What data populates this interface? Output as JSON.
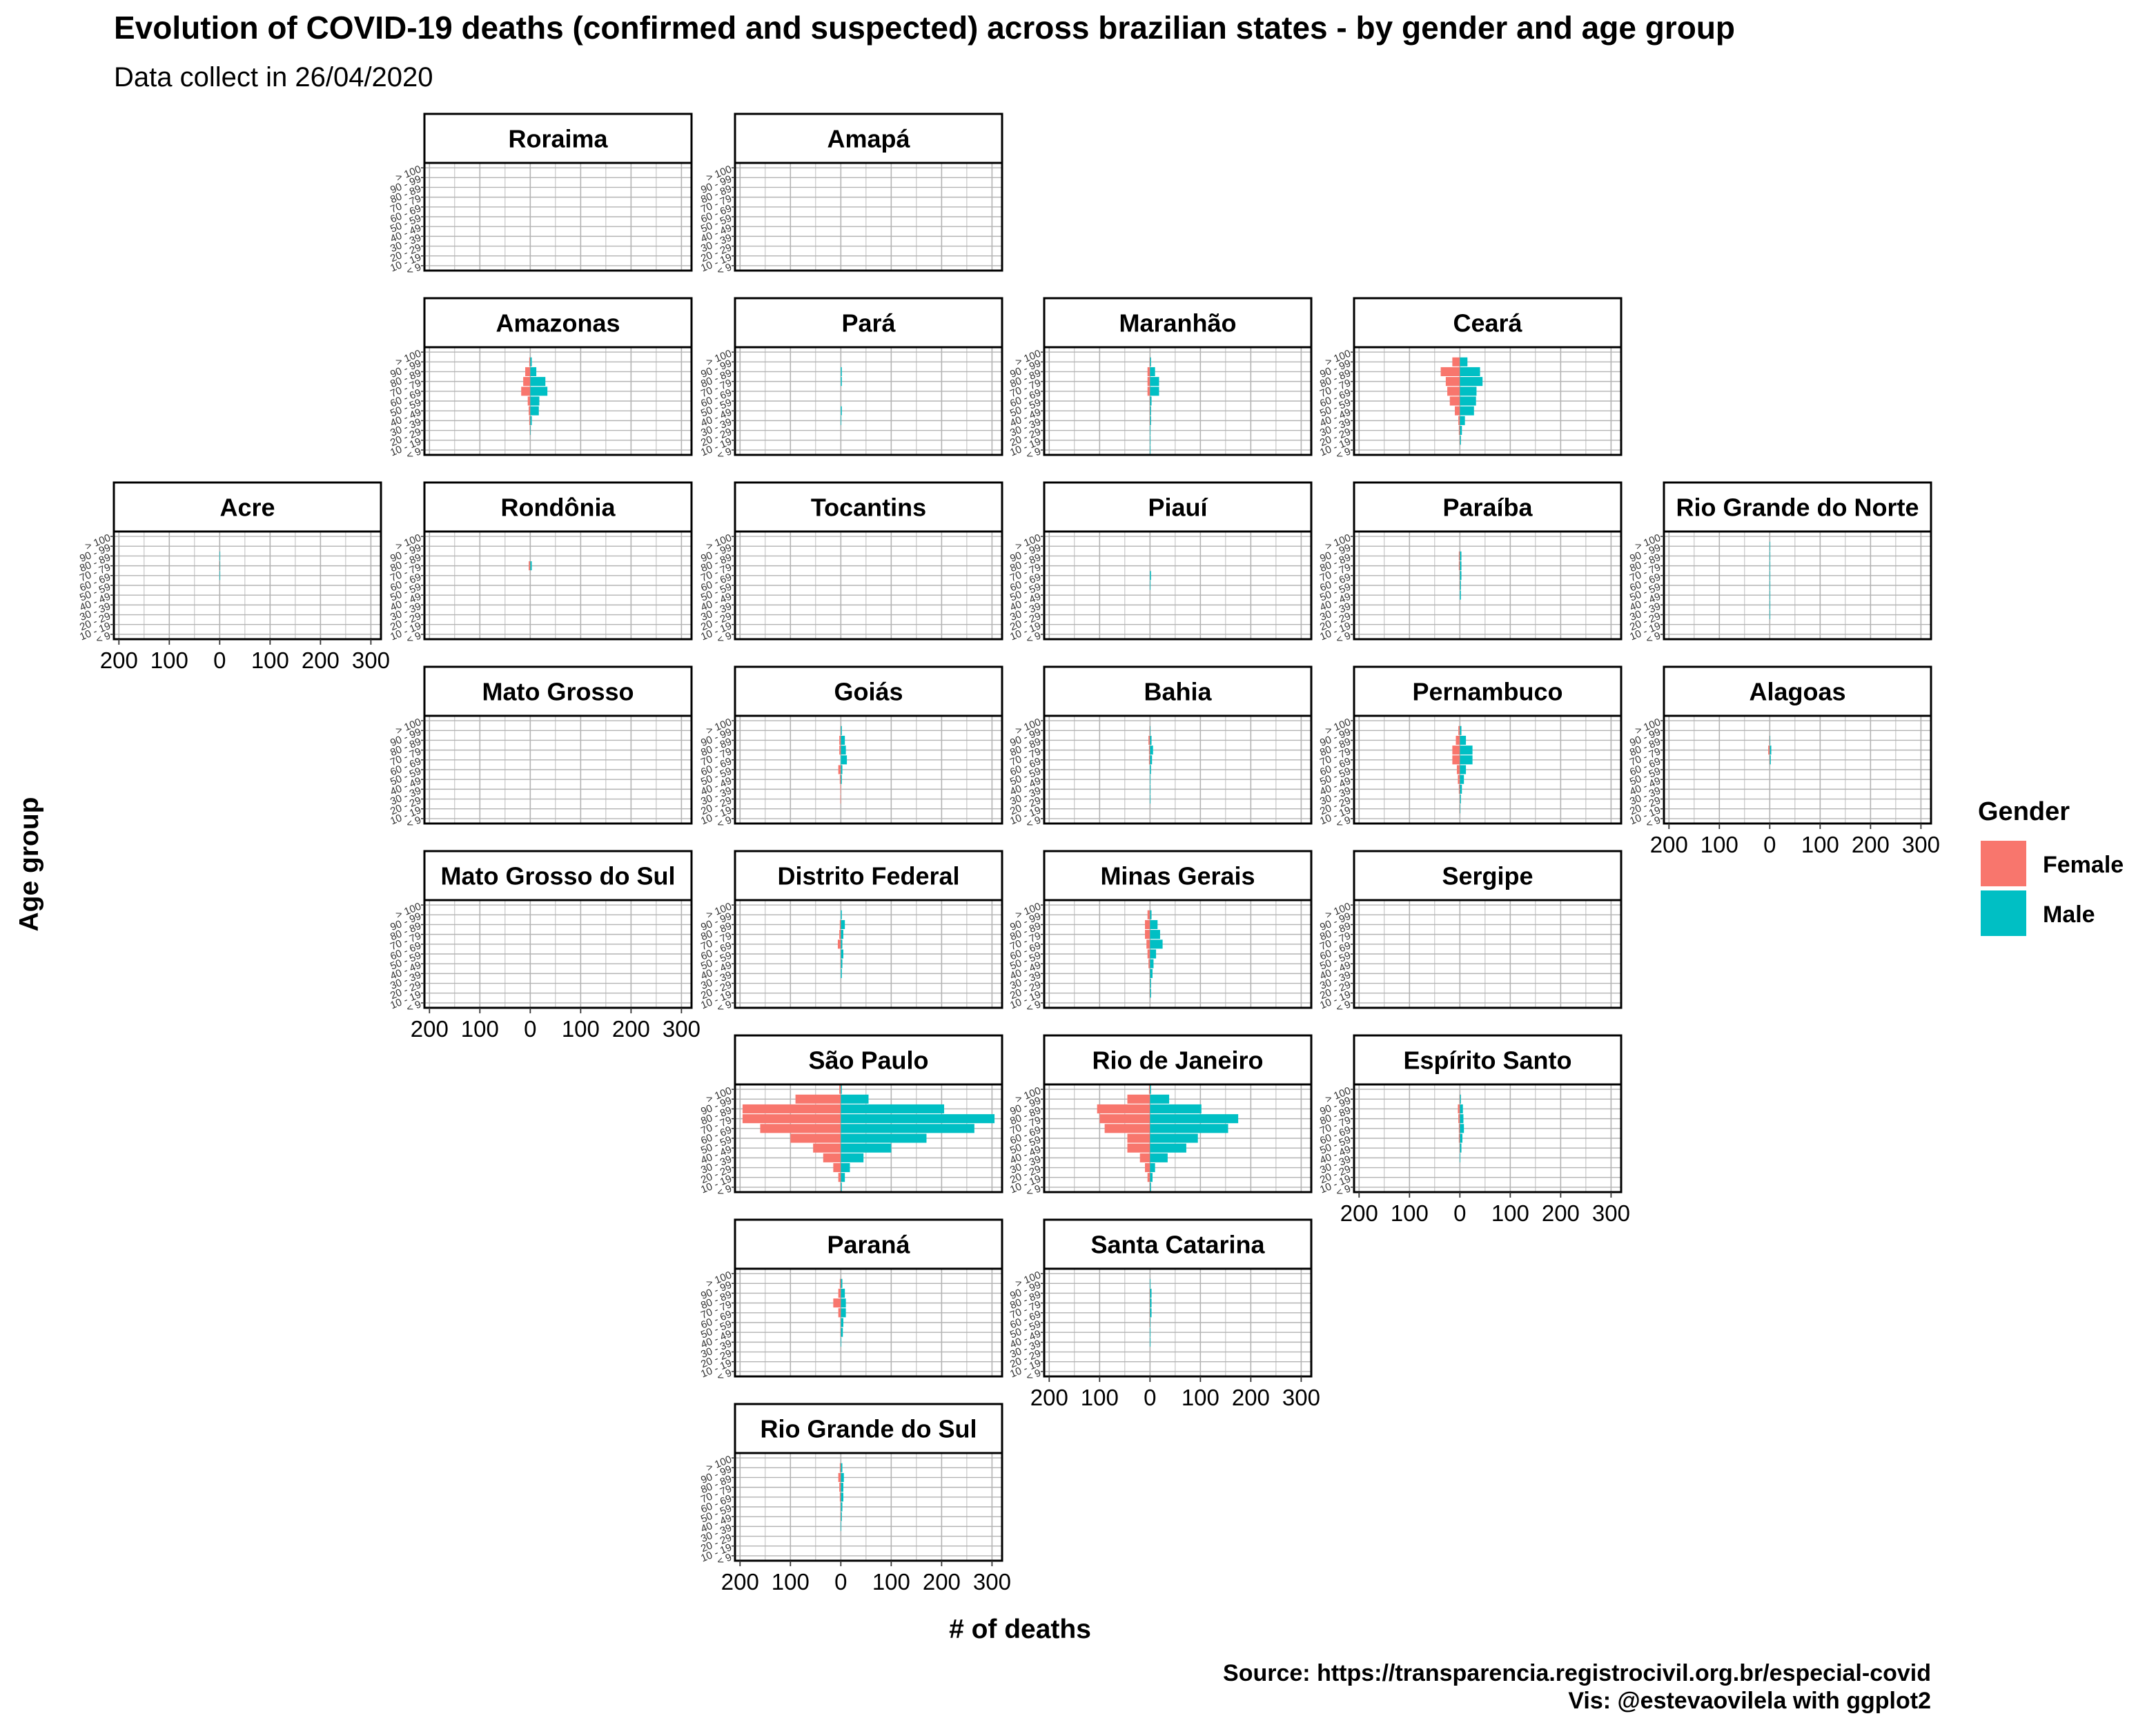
{
  "title": "Evolution of COVID-19 deaths (confirmed and suspected) across brazilian states - by gender and age group",
  "subtitle": "Data collect in 26/04/2020",
  "caption_lines": [
    "Source: https://transparencia.registrocivil.org.br/especial-covid",
    "Vis: @estevaovilela with ggplot2"
  ],
  "colors": {
    "female": "#F8766D",
    "male": "#00BFC4",
    "grid": "#b3b3b3",
    "strip_bg": "#ffffff",
    "border": "#000000"
  },
  "chart_data": {
    "type": "bar",
    "orientation": "horizontal-population-pyramid",
    "xlabel": "# of deaths",
    "ylabel": "Age group",
    "xlim": [
      -210,
      320
    ],
    "x_ticks": [
      -200,
      -100,
      0,
      100,
      200,
      300
    ],
    "x_tick_labels": [
      "200",
      "100",
      "0",
      "100",
      "200",
      "300"
    ],
    "age_groups": [
      "< 9",
      "10 - 19",
      "20 - 29",
      "30 - 39",
      "40 - 49",
      "50 - 59",
      "60 - 69",
      "70 - 79",
      "80 - 89",
      "90 - 99",
      "> 100"
    ],
    "legend": {
      "title": "Gender",
      "entries": [
        "Female",
        "Male"
      ],
      "position": "right"
    },
    "grid": true,
    "series_order": [
      "Female",
      "Male"
    ],
    "facets": [
      {
        "state": "Roraima",
        "row": 0,
        "col": 1,
        "female": [
          0,
          0,
          0,
          0,
          0,
          0,
          0,
          0,
          0,
          0,
          0
        ],
        "male": [
          0,
          0,
          0,
          0,
          0,
          0,
          0,
          0,
          0,
          0,
          0
        ]
      },
      {
        "state": "Amapá",
        "row": 0,
        "col": 2,
        "female": [
          0,
          0,
          0,
          0,
          0,
          0,
          0,
          0,
          0,
          0,
          0
        ],
        "male": [
          0,
          0,
          0,
          0,
          0,
          0,
          0,
          0,
          0,
          0,
          0
        ]
      },
      {
        "state": "Amazonas",
        "row": 1,
        "col": 1,
        "female": [
          0,
          0,
          1,
          2,
          3,
          5,
          18,
          14,
          10,
          2,
          0
        ],
        "male": [
          0,
          0,
          1,
          3,
          17,
          18,
          34,
          30,
          12,
          3,
          0
        ]
      },
      {
        "state": "Pará",
        "row": 1,
        "col": 2,
        "female": [
          0,
          0,
          0,
          0,
          0,
          0,
          0,
          0,
          0,
          0,
          0
        ],
        "male": [
          0,
          0,
          0,
          1,
          2,
          0,
          0,
          2,
          2,
          0,
          0
        ]
      },
      {
        "state": "Maranhão",
        "row": 1,
        "col": 3,
        "female": [
          0,
          0,
          0,
          1,
          1,
          1,
          5,
          5,
          5,
          1,
          0
        ],
        "male": [
          1,
          1,
          1,
          2,
          2,
          3,
          18,
          18,
          10,
          2,
          0
        ]
      },
      {
        "state": "Ceará",
        "row": 1,
        "col": 4,
        "female": [
          0,
          1,
          2,
          3,
          10,
          20,
          25,
          28,
          38,
          15,
          0
        ],
        "male": [
          0,
          2,
          4,
          10,
          28,
          32,
          33,
          45,
          40,
          15,
          0
        ]
      },
      {
        "state": "Acre",
        "row": 2,
        "col": 0,
        "female": [
          0,
          0,
          0,
          0,
          0,
          0,
          0,
          1,
          0,
          0,
          0
        ],
        "male": [
          0,
          0,
          0,
          0,
          0,
          0,
          1,
          1,
          1,
          0,
          0
        ]
      },
      {
        "state": "Rondônia",
        "row": 2,
        "col": 1,
        "female": [
          0,
          0,
          0,
          0,
          0,
          0,
          0,
          3,
          0,
          0,
          0
        ],
        "male": [
          0,
          0,
          0,
          0,
          0,
          0,
          0,
          3,
          0,
          0,
          0
        ]
      },
      {
        "state": "Tocantins",
        "row": 2,
        "col": 2,
        "female": [
          0,
          0,
          0,
          0,
          0,
          0,
          0,
          0,
          0,
          0,
          0
        ],
        "male": [
          0,
          0,
          0,
          0,
          0,
          0,
          0,
          0,
          0,
          0,
          0
        ]
      },
      {
        "state": "Piauí",
        "row": 2,
        "col": 3,
        "female": [
          0,
          0,
          0,
          0,
          0,
          0,
          0,
          0,
          0,
          0,
          0
        ],
        "male": [
          0,
          0,
          0,
          0,
          0,
          1,
          2,
          0,
          0,
          0,
          0
        ]
      },
      {
        "state": "Paraíba",
        "row": 2,
        "col": 4,
        "female": [
          0,
          0,
          0,
          0,
          0,
          1,
          1,
          2,
          2,
          0,
          0
        ],
        "male": [
          0,
          0,
          0,
          0,
          2,
          2,
          3,
          3,
          3,
          0,
          0
        ]
      },
      {
        "state": "Rio Grande do Norte",
        "row": 2,
        "col": 5,
        "female": [
          0,
          0,
          0,
          0,
          0,
          0,
          0,
          0,
          0,
          0,
          0
        ],
        "male": [
          0,
          0,
          1,
          1,
          1,
          1,
          1,
          1,
          1,
          1,
          0
        ]
      },
      {
        "state": "Mato Grosso",
        "row": 3,
        "col": 1,
        "female": [
          0,
          0,
          0,
          0,
          0,
          0,
          0,
          0,
          0,
          0,
          0
        ],
        "male": [
          0,
          0,
          0,
          0,
          0,
          0,
          0,
          0,
          0,
          0,
          0
        ]
      },
      {
        "state": "Goiás",
        "row": 3,
        "col": 2,
        "female": [
          0,
          0,
          1,
          1,
          2,
          5,
          0,
          3,
          3,
          1,
          0
        ],
        "male": [
          0,
          0,
          0,
          0,
          2,
          3,
          12,
          10,
          8,
          2,
          0
        ]
      },
      {
        "state": "Bahia",
        "row": 3,
        "col": 3,
        "female": [
          0,
          0,
          0,
          0,
          0,
          0,
          2,
          2,
          3,
          1,
          0
        ],
        "male": [
          0,
          0,
          1,
          1,
          1,
          2,
          4,
          6,
          3,
          1,
          0
        ]
      },
      {
        "state": "Pernambuco",
        "row": 3,
        "col": 4,
        "female": [
          0,
          1,
          1,
          2,
          4,
          6,
          15,
          15,
          8,
          3,
          0
        ],
        "male": [
          0,
          1,
          2,
          4,
          8,
          12,
          25,
          25,
          12,
          3,
          0
        ]
      },
      {
        "state": "Alagoas",
        "row": 3,
        "col": 5,
        "female": [
          0,
          0,
          0,
          0,
          0,
          0,
          1,
          3,
          1,
          0,
          0
        ],
        "male": [
          0,
          0,
          0,
          0,
          0,
          0,
          2,
          3,
          1,
          0,
          0
        ]
      },
      {
        "state": "Mato Grosso do Sul",
        "row": 4,
        "col": 1,
        "female": [
          0,
          0,
          0,
          0,
          0,
          0,
          0,
          0,
          0,
          0,
          0
        ],
        "male": [
          0,
          0,
          0,
          0,
          0,
          0,
          0,
          0,
          0,
          0,
          0
        ]
      },
      {
        "state": "Distrito Federal",
        "row": 4,
        "col": 2,
        "female": [
          0,
          0,
          0,
          0,
          1,
          1,
          6,
          3,
          2,
          0,
          0
        ],
        "male": [
          0,
          0,
          0,
          2,
          3,
          5,
          3,
          5,
          8,
          2,
          0
        ]
      },
      {
        "state": "Minas Gerais",
        "row": 4,
        "col": 3,
        "female": [
          0,
          1,
          1,
          1,
          3,
          5,
          7,
          10,
          10,
          5,
          0
        ],
        "male": [
          0,
          2,
          2,
          5,
          7,
          12,
          25,
          20,
          15,
          3,
          0
        ]
      },
      {
        "state": "Sergipe",
        "row": 4,
        "col": 4,
        "female": [
          0,
          0,
          0,
          0,
          0,
          0,
          0,
          0,
          0,
          0,
          0
        ],
        "male": [
          0,
          0,
          0,
          0,
          0,
          0,
          0,
          0,
          0,
          0,
          0
        ]
      },
      {
        "state": "São Paulo",
        "row": 5,
        "col": 2,
        "female": [
          1,
          5,
          15,
          35,
          55,
          100,
          160,
          195,
          195,
          90,
          3
        ],
        "male": [
          2,
          8,
          18,
          45,
          100,
          170,
          265,
          305,
          205,
          55,
          2
        ]
      },
      {
        "state": "Rio de Janeiro",
        "row": 5,
        "col": 3,
        "female": [
          1,
          5,
          10,
          20,
          45,
          45,
          90,
          100,
          105,
          45,
          2
        ],
        "male": [
          2,
          5,
          10,
          35,
          72,
          95,
          155,
          175,
          102,
          38,
          2
        ]
      },
      {
        "state": "Espírito Santo",
        "row": 5,
        "col": 4,
        "female": [
          0,
          0,
          0,
          0,
          1,
          2,
          2,
          3,
          4,
          1,
          0
        ],
        "male": [
          0,
          0,
          0,
          1,
          3,
          5,
          8,
          7,
          6,
          2,
          0
        ]
      },
      {
        "state": "Paraná",
        "row": 6,
        "col": 2,
        "female": [
          0,
          0,
          0,
          0,
          1,
          1,
          5,
          15,
          5,
          2,
          0
        ],
        "male": [
          0,
          0,
          0,
          1,
          4,
          5,
          10,
          10,
          8,
          3,
          0
        ]
      },
      {
        "state": "Santa Catarina",
        "row": 6,
        "col": 3,
        "female": [
          0,
          0,
          0,
          0,
          0,
          1,
          1,
          1,
          1,
          0,
          0
        ],
        "male": [
          0,
          0,
          0,
          1,
          1,
          1,
          3,
          3,
          3,
          1,
          0
        ]
      },
      {
        "state": "Rio Grande do Sul",
        "row": 7,
        "col": 2,
        "female": [
          0,
          0,
          0,
          0,
          1,
          1,
          2,
          3,
          5,
          2,
          0
        ],
        "male": [
          0,
          0,
          0,
          1,
          2,
          3,
          5,
          5,
          6,
          3,
          0
        ]
      }
    ],
    "x_axis_shown_on": [
      "Acre",
      "Mato Grosso do Sul",
      "Alagoas",
      "Espírito Santo",
      "Santa Catarina",
      "Rio Grande do Sul"
    ]
  }
}
